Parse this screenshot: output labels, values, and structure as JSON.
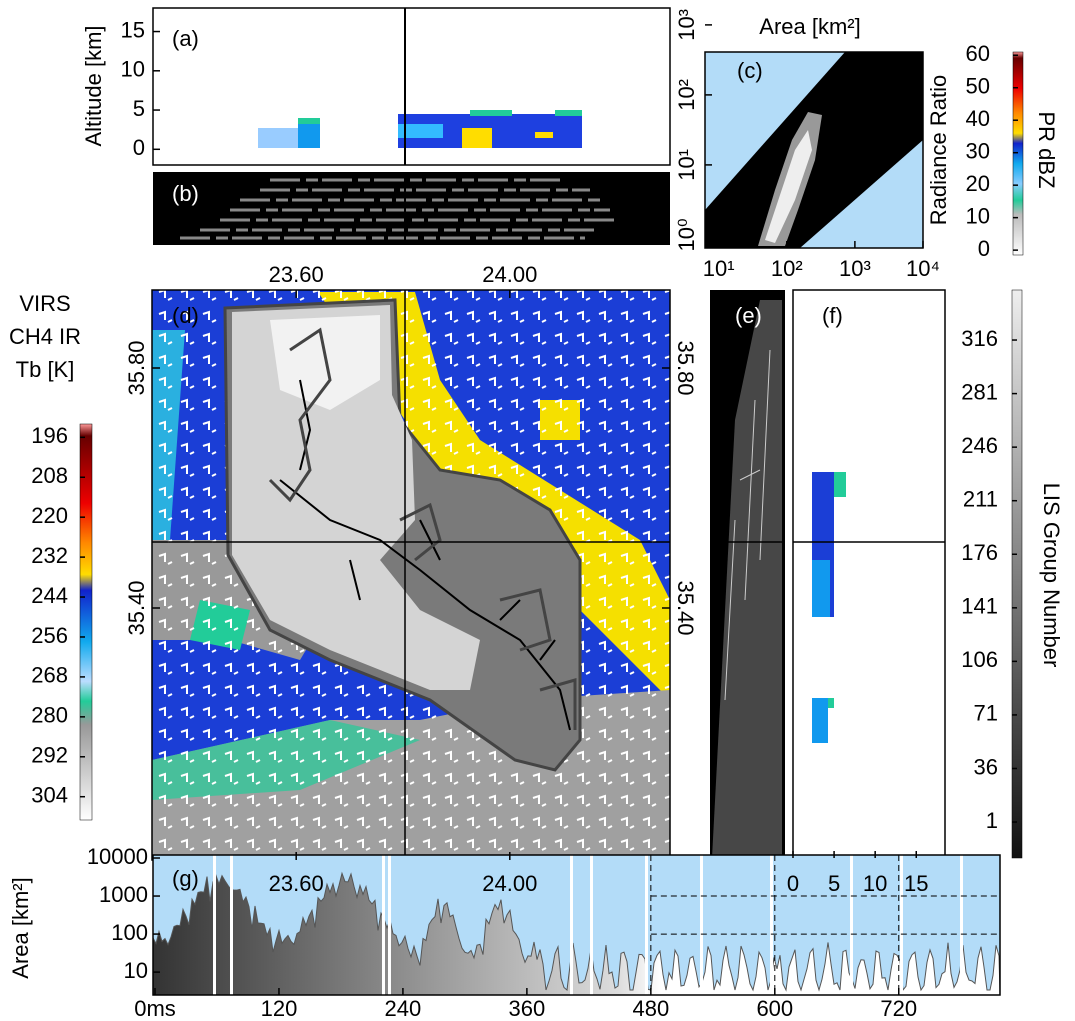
{
  "panels": {
    "a": {
      "label": "(a)",
      "ylabel": "Altitude [km]",
      "ylim": [
        -2,
        18
      ],
      "yticks": [
        0,
        5,
        10,
        15
      ]
    },
    "b": {
      "label": "(b)"
    },
    "c": {
      "label": "(c)",
      "title": "Area [km²]",
      "ylabel": "Radiance Ratio",
      "xscale": "log",
      "yscale": "log",
      "xlim": [
        6.3,
        10000
      ],
      "xticks": [
        {
          "value": 10,
          "label": "10¹"
        },
        {
          "value": 100,
          "label": "10²"
        },
        {
          "value": 1000,
          "label": "10³"
        },
        {
          "value": 10000,
          "label": "10⁴"
        }
      ],
      "ylim": [
        0.65,
        410
      ],
      "yticks": [
        {
          "value": 1,
          "label": "10⁰"
        },
        {
          "value": 10,
          "label": "10¹"
        },
        {
          "value": 100,
          "label": "10²"
        },
        {
          "value": 1000,
          "label": "10³"
        }
      ]
    },
    "pr_colorbar": {
      "label": "PR dBZ",
      "lim": [
        -1.5,
        61
      ],
      "ticks": [
        0,
        10,
        20,
        30,
        40,
        50,
        60
      ]
    },
    "virs_colorbar": {
      "label_lines": [
        "VIRS",
        "CH4 IR",
        "Tb [K]"
      ],
      "lim": [
        311,
        192
      ],
      "ticks": [
        196,
        208,
        220,
        232,
        244,
        256,
        268,
        280,
        292,
        304
      ]
    },
    "d": {
      "label": "(d)",
      "xlim": [
        23.33,
        24.3
      ],
      "xticks": [
        {
          "value": 23.6,
          "label": "23.60"
        },
        {
          "value": 24.0,
          "label": "24.00"
        }
      ],
      "ylim": [
        34.98,
        35.93
      ],
      "yticks": [
        {
          "value": 35.4,
          "label": "35.40"
        },
        {
          "value": 35.8,
          "label": "35.80"
        }
      ]
    },
    "e": {
      "label": "(e)"
    },
    "f": {
      "label": "(f)",
      "xlim": [
        0,
        18.5
      ],
      "xticks": [
        0,
        5,
        10,
        15
      ]
    },
    "lis_colorbar": {
      "label": "LIS Group Number",
      "lim": [
        -22.5,
        348.7
      ],
      "ticks": [
        1,
        36,
        71,
        106,
        141,
        176,
        211,
        246,
        281,
        316
      ]
    },
    "g": {
      "label": "(g)",
      "ylabel": "Area [km²]",
      "yscale": "log",
      "ylim": [
        2.5,
        12000
      ],
      "yticks": [
        10,
        100,
        1000,
        10000
      ],
      "xlim": [
        0,
        818
      ],
      "xticks": [
        {
          "value": 0,
          "label": "0ms"
        },
        120,
        240,
        360,
        480,
        600,
        720
      ]
    }
  }
}
